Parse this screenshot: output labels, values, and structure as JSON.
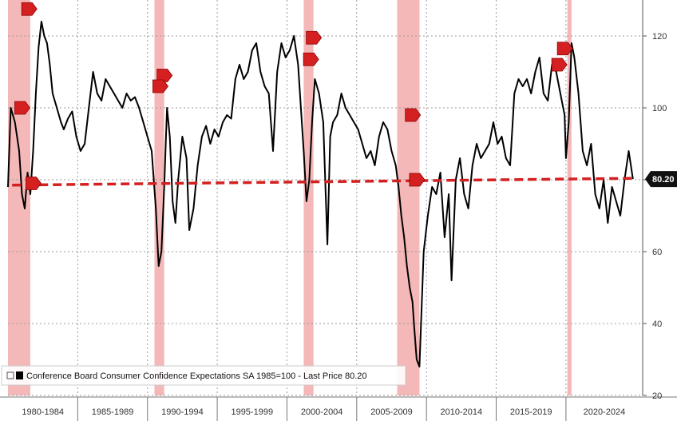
{
  "chart_data": {
    "type": "line",
    "title": "",
    "xlabel": "",
    "ylabel": "",
    "ylim": [
      20,
      130
    ],
    "xlim": [
      1980,
      2025.5
    ],
    "y_ticks": [
      20,
      40,
      60,
      80,
      100,
      120
    ],
    "y_tick_labels": [
      "20",
      "40",
      "60",
      "80",
      "100",
      "120"
    ],
    "x_period_labels": [
      "1980-1984",
      "1985-1989",
      "1990-1994",
      "1995-1999",
      "2000-2004",
      "2005-2009",
      "2010-2014",
      "2015-2019",
      "2020-2024"
    ],
    "x_period_starts": [
      1980,
      1985,
      1990,
      1995,
      2000,
      2005,
      2010,
      2015,
      2020
    ],
    "grid": true,
    "legend": {
      "placement": "bottom-left",
      "entry": "Conference Board Consumer Confidence Expectations SA 1985=100 - Last Price 80.20"
    },
    "last_price": {
      "value": 80.2,
      "label": "80.20",
      "color": "#111111"
    },
    "threshold_line": {
      "value": 80,
      "color": "#d42020",
      "style": "dashed"
    },
    "recessions": [
      {
        "start": 1980.0,
        "end": 1981.6
      },
      {
        "start": 1990.5,
        "end": 1991.2
      },
      {
        "start": 2001.2,
        "end": 2001.9
      },
      {
        "start": 2007.9,
        "end": 2009.5
      },
      {
        "start": 2020.1,
        "end": 2020.4
      }
    ],
    "recession_color": "#f5b8b8",
    "markers": [
      {
        "x": 1981.5,
        "y": 127.5
      },
      {
        "x": 1981.0,
        "y": 100
      },
      {
        "x": 1981.8,
        "y": 79
      },
      {
        "x": 1991.2,
        "y": 109
      },
      {
        "x": 1990.9,
        "y": 106
      },
      {
        "x": 2001.9,
        "y": 119.5
      },
      {
        "x": 2001.7,
        "y": 113.5
      },
      {
        "x": 2009.0,
        "y": 98
      },
      {
        "x": 2009.3,
        "y": 80
      },
      {
        "x": 2019.9,
        "y": 116.5
      },
      {
        "x": 2019.5,
        "y": 112
      }
    ],
    "marker_color": "#d42020",
    "series": [
      {
        "color": "#000000",
        "x": [
          1980.0,
          1980.2,
          1980.5,
          1980.8,
          1981.0,
          1981.2,
          1981.4,
          1981.6,
          1981.8,
          1982.0,
          1982.2,
          1982.4,
          1982.6,
          1982.8,
          1983.0,
          1983.2,
          1983.5,
          1983.8,
          1984.0,
          1984.3,
          1984.6,
          1984.9,
          1985.2,
          1985.5,
          1985.8,
          1986.1,
          1986.4,
          1986.7,
          1987.0,
          1987.3,
          1987.6,
          1987.9,
          1988.2,
          1988.5,
          1988.8,
          1989.1,
          1989.4,
          1989.7,
          1990.0,
          1990.3,
          1990.6,
          1990.8,
          1991.0,
          1991.2,
          1991.4,
          1991.6,
          1991.8,
          1992.0,
          1992.2,
          1992.5,
          1992.8,
          1993.0,
          1993.3,
          1993.6,
          1993.9,
          1994.2,
          1994.5,
          1994.8,
          1995.1,
          1995.4,
          1995.7,
          1996.0,
          1996.3,
          1996.6,
          1996.9,
          1997.2,
          1997.5,
          1997.8,
          1998.1,
          1998.4,
          1998.7,
          1999.0,
          1999.3,
          1999.6,
          1999.9,
          2000.2,
          2000.5,
          2000.8,
          2001.0,
          2001.2,
          2001.4,
          2001.6,
          2001.8,
          2002.0,
          2002.3,
          2002.6,
          2002.9,
          2003.1,
          2003.3,
          2003.6,
          2003.9,
          2004.2,
          2004.5,
          2004.8,
          2005.1,
          2005.4,
          2005.7,
          2006.0,
          2006.3,
          2006.6,
          2006.9,
          2007.2,
          2007.5,
          2007.8,
          2008.0,
          2008.2,
          2008.4,
          2008.6,
          2008.8,
          2009.0,
          2009.1,
          2009.3,
          2009.5,
          2009.8,
          2010.1,
          2010.4,
          2010.7,
          2011.0,
          2011.3,
          2011.6,
          2011.8,
          2012.1,
          2012.4,
          2012.7,
          2013.0,
          2013.3,
          2013.6,
          2013.9,
          2014.2,
          2014.5,
          2014.8,
          2015.1,
          2015.4,
          2015.7,
          2016.0,
          2016.3,
          2016.6,
          2016.9,
          2017.2,
          2017.5,
          2017.8,
          2018.1,
          2018.4,
          2018.7,
          2019.0,
          2019.3,
          2019.6,
          2019.9,
          2020.0,
          2020.2,
          2020.4,
          2020.6,
          2020.9,
          2021.2,
          2021.5,
          2021.8,
          2022.1,
          2022.4,
          2022.7,
          2023.0,
          2023.3,
          2023.6,
          2023.9,
          2024.2,
          2024.5,
          2024.8
        ],
        "values": [
          78,
          100,
          96,
          88,
          76,
          72,
          82,
          76,
          88,
          104,
          117,
          124,
          120,
          118,
          112,
          104,
          100,
          96,
          94,
          97,
          99,
          92,
          88,
          90,
          100,
          110,
          104,
          102,
          108,
          106,
          104,
          102,
          100,
          104,
          102,
          103,
          100,
          96,
          92,
          88,
          72,
          56,
          60,
          78,
          100,
          92,
          74,
          68,
          80,
          92,
          86,
          66,
          72,
          84,
          92,
          95,
          90,
          94,
          92,
          96,
          98,
          97,
          108,
          112,
          108,
          110,
          116,
          118,
          110,
          106,
          104,
          88,
          110,
          118,
          114,
          116,
          120,
          112,
          100,
          88,
          74,
          80,
          96,
          108,
          104,
          96,
          62,
          92,
          96,
          98,
          104,
          100,
          98,
          96,
          94,
          90,
          86,
          88,
          84,
          92,
          96,
          94,
          88,
          84,
          78,
          70,
          64,
          56,
          50,
          46,
          40,
          30,
          28,
          60,
          70,
          78,
          76,
          82,
          64,
          76,
          52,
          80,
          86,
          76,
          72,
          84,
          90,
          86,
          88,
          90,
          96,
          90,
          92,
          86,
          84,
          104,
          108,
          106,
          108,
          104,
          110,
          114,
          104,
          102,
          112,
          110,
          104,
          98,
          86,
          96,
          118,
          114,
          104,
          88,
          84,
          90,
          76,
          72,
          80,
          68,
          78,
          74,
          70,
          80,
          88,
          80.2
        ]
      }
    ]
  }
}
